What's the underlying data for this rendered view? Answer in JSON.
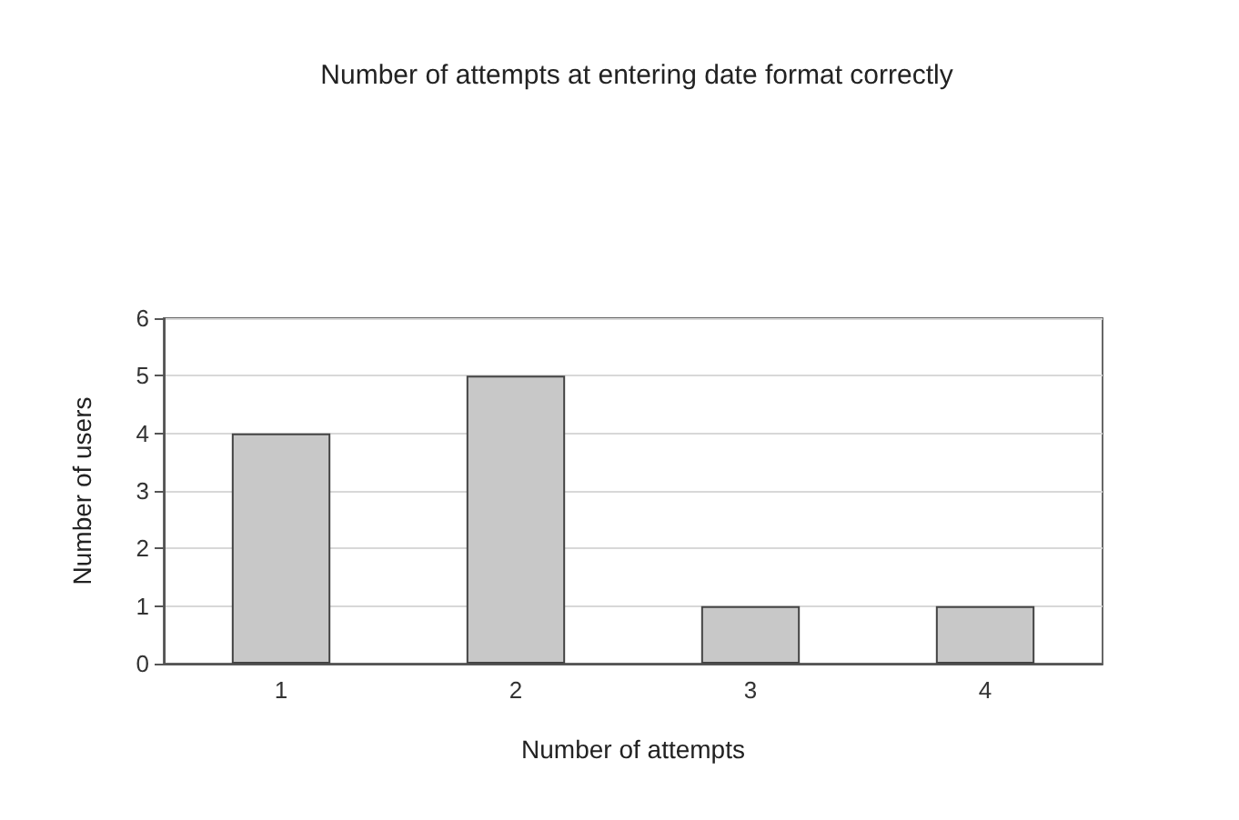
{
  "chart_data": {
    "type": "bar",
    "title": "Number of attempts at entering date format correctly",
    "xlabel": "Number of attempts",
    "ylabel": "Number of users",
    "categories": [
      "1",
      "2",
      "3",
      "4"
    ],
    "values": [
      4,
      5,
      1,
      1
    ],
    "color": "#c8c8c8",
    "ylim": [
      0,
      6
    ],
    "yticks": [
      0,
      1,
      2,
      3,
      4,
      5,
      6
    ],
    "grid": "y"
  }
}
